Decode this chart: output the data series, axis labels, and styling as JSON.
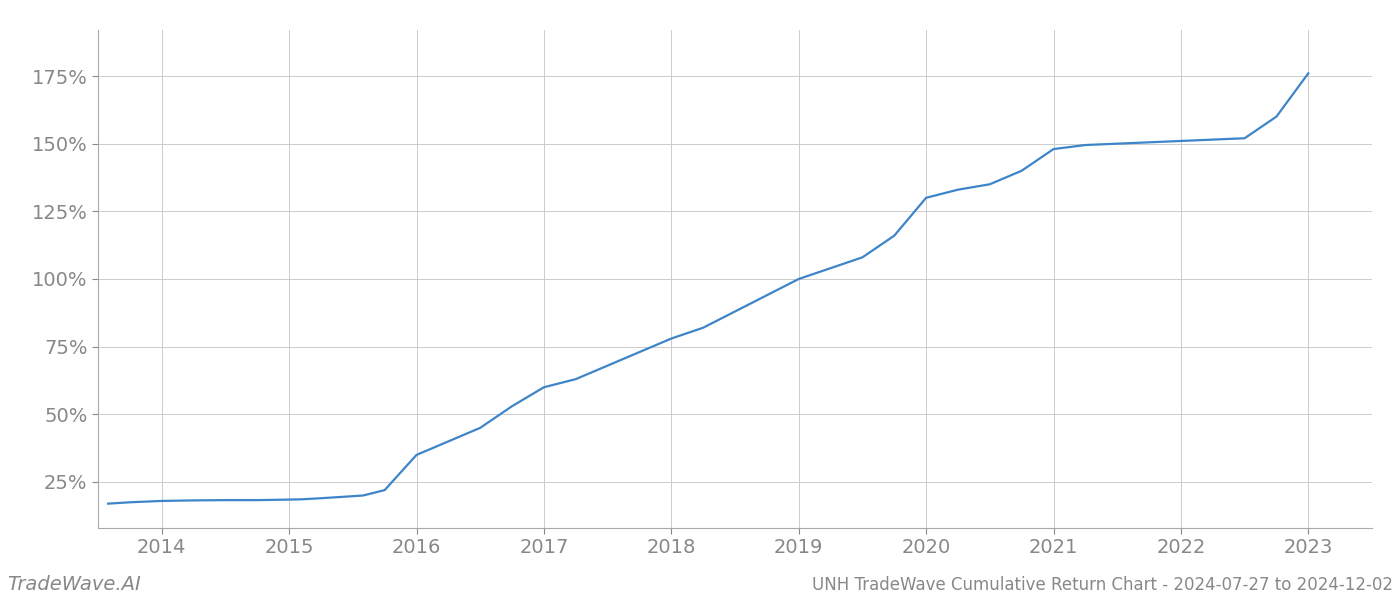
{
  "title": "UNH TradeWave Cumulative Return Chart - 2024-07-27 to 2024-12-02",
  "watermark": "TradeWave.AI",
  "line_color": "#3d85c8",
  "background_color": "#ffffff",
  "grid_color": "#cccccc",
  "x_years": [
    2014,
    2015,
    2016,
    2017,
    2018,
    2019,
    2020,
    2021,
    2022,
    2023
  ],
  "x_data": [
    2013.58,
    2013.75,
    2014.0,
    2014.25,
    2014.5,
    2014.75,
    2015.0,
    2015.1,
    2015.25,
    2015.58,
    2015.75,
    2016.0,
    2016.25,
    2016.5,
    2016.75,
    2017.0,
    2017.25,
    2017.5,
    2017.75,
    2018.0,
    2018.25,
    2018.5,
    2018.75,
    2019.0,
    2019.25,
    2019.5,
    2019.75,
    2020.0,
    2020.25,
    2020.5,
    2020.75,
    2021.0,
    2021.25,
    2021.5,
    2021.75,
    2022.0,
    2022.25,
    2022.5,
    2022.75,
    2023.0
  ],
  "y_data": [
    0.17,
    0.175,
    0.18,
    0.182,
    0.183,
    0.183,
    0.185,
    0.186,
    0.19,
    0.2,
    0.22,
    0.35,
    0.4,
    0.45,
    0.53,
    0.6,
    0.63,
    0.68,
    0.73,
    0.78,
    0.82,
    0.88,
    0.94,
    1.0,
    1.04,
    1.08,
    1.16,
    1.3,
    1.33,
    1.35,
    1.4,
    1.48,
    1.495,
    1.5,
    1.505,
    1.51,
    1.515,
    1.52,
    1.6,
    1.76
  ],
  "yticks": [
    0.25,
    0.5,
    0.75,
    1.0,
    1.25,
    1.5,
    1.75
  ],
  "ytick_labels": [
    "25%",
    "50%",
    "75%",
    "100%",
    "125%",
    "150%",
    "175%"
  ],
  "xlim": [
    2013.5,
    2023.5
  ],
  "ylim": [
    0.08,
    1.92
  ],
  "tick_color": "#888888",
  "axis_color": "#aaaaaa",
  "label_fontsize": 14,
  "watermark_fontsize": 14,
  "title_fontsize": 12
}
